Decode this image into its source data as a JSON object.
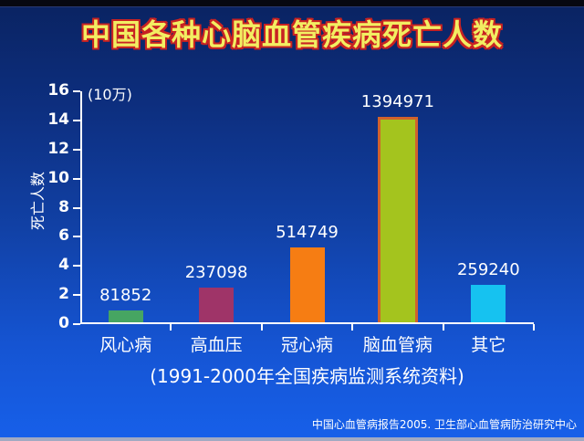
{
  "title": "中国各种心脑血管疾病死亡人数",
  "caption": "(1991-2000年全国疾病监测系统资料)",
  "credit": "中国心血管病报告2005. 卫生部心血管病防治研究中心",
  "colors": {
    "background_top": "#0a2361",
    "background_bottom": "#1760ea",
    "title_fill": "#f2ee62",
    "title_outline": "#c82222",
    "axis_and_text": "#ffffff",
    "top_strip": "#070810",
    "bottom_strip": "#a2aac2"
  },
  "chart_data": {
    "type": "bar",
    "title": "中国各种心脑血管疾病死亡人数",
    "categories": [
      "风心病",
      "高血压",
      "冠心病",
      "脑血管病",
      "其它"
    ],
    "values": [
      81852,
      237098,
      514749,
      1394971,
      259240
    ],
    "bar_colors": [
      "#46a562",
      "#9f3468",
      "#f67d13",
      "#a4c41e",
      "#16c2f0"
    ],
    "highlighted_bar": {
      "index": 3,
      "border_color": "#d1622c"
    },
    "xlabel": "",
    "ylabel": "死亡人数",
    "unit_label": "(10万)",
    "unit_divisor": 100000,
    "ylim": [
      0,
      16
    ],
    "yticks": [
      0,
      2,
      4,
      6,
      8,
      10,
      12,
      14,
      16
    ],
    "grid": false,
    "legend": false
  }
}
